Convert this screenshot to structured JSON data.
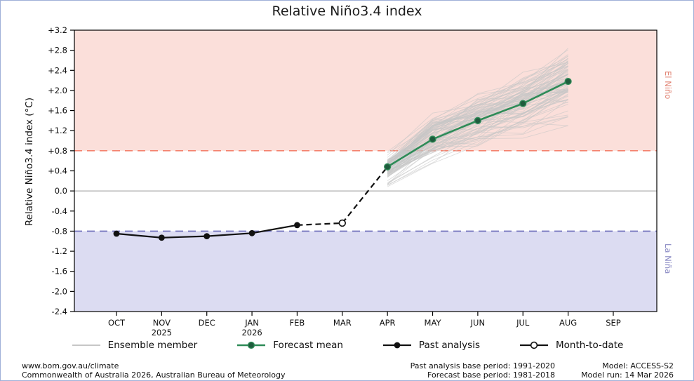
{
  "title": "Relative Niño3.4 index",
  "ylabel": "Relative Niño3.4 index (°C)",
  "right_labels": {
    "el_nino": "El Niño",
    "la_nina": "La Niña"
  },
  "legend": {
    "ensemble": "Ensemble member",
    "forecast": "Forecast mean",
    "past": "Past analysis",
    "mtd": "Month-to-date"
  },
  "footer": {
    "site": "www.bom.gov.au/climate",
    "copyright": "Commonwealth of Australia 2026, Australian Bureau of Meteorology",
    "past_base": "Past analysis base period: 1991-2020",
    "forecast_base": "Forecast base period: 1981-2018",
    "model": "Model: ACCESS-S2",
    "model_run": "Model run: 14 Mar 2026"
  },
  "colors": {
    "forecast_green": "#2e8b57",
    "forecast_marker": "#1f5c3d",
    "past_black": "#111111",
    "ensemble_gray": "#c6c6c6",
    "el_nino_region": "#fbdfda",
    "la_nina_region": "#dcdcf2",
    "el_nino_line": "#f4826e",
    "la_nina_line": "#6b6bb8",
    "el_nino_text": "#e08272",
    "la_nina_text": "#8787c2",
    "zero_line": "#999999"
  },
  "chart_data": {
    "type": "line",
    "title": "Relative Niño3.4 index",
    "xlabel": "",
    "ylabel": "Relative Niño3.4 index (°C)",
    "ylim": [
      -2.4,
      3.2
    ],
    "grid": false,
    "legend_position": "bottom",
    "categories": [
      "OCT",
      "NOV",
      "DEC",
      "JAN",
      "FEB",
      "MAR",
      "APR",
      "MAY",
      "JUN",
      "JUL",
      "AUG",
      "SEP"
    ],
    "year_labels": [
      {
        "month_index": 1,
        "label": "2025"
      },
      {
        "month_index": 3,
        "label": "2026"
      }
    ],
    "yticks": [
      {
        "v": 3.2,
        "label": "+3.2"
      },
      {
        "v": 2.8,
        "label": "+2.8"
      },
      {
        "v": 2.4,
        "label": "+2.4"
      },
      {
        "v": 2.0,
        "label": "+2.0"
      },
      {
        "v": 1.6,
        "label": "+1.6"
      },
      {
        "v": 1.2,
        "label": "+1.2"
      },
      {
        "v": 0.8,
        "label": "+0.8"
      },
      {
        "v": 0.4,
        "label": "+0.4"
      },
      {
        "v": 0.0,
        "label": "0.0"
      },
      {
        "v": -0.4,
        "label": "-0.4"
      },
      {
        "v": -0.8,
        "label": "-0.8"
      },
      {
        "v": -1.2,
        "label": "-1.2"
      },
      {
        "v": -1.6,
        "label": "-1.6"
      },
      {
        "v": -2.0,
        "label": "-2.0"
      },
      {
        "v": -2.4,
        "label": "-2.4"
      }
    ],
    "thresholds": {
      "el_nino": 0.8,
      "zero": 0.0,
      "la_nina": -0.8
    },
    "regions": [
      {
        "name": "El Niño",
        "from": 0.8,
        "to": 3.2
      },
      {
        "name": "La Niña",
        "from": -2.4,
        "to": -0.8
      }
    ],
    "series": [
      {
        "name": "Past analysis",
        "style": "solid",
        "marker": "filled",
        "months": [
          "OCT",
          "NOV",
          "DEC",
          "JAN",
          "FEB"
        ],
        "values": [
          -0.85,
          -0.93,
          -0.9,
          -0.84,
          -0.68
        ]
      },
      {
        "name": "Month-to-date",
        "style": "dashed",
        "marker": "open",
        "months": [
          "FEB",
          "MAR"
        ],
        "values": [
          -0.68,
          -0.64
        ]
      },
      {
        "name": "Forecast connector",
        "style": "dashed",
        "marker": "none",
        "months": [
          "MAR",
          "APR"
        ],
        "values": [
          -0.64,
          0.48
        ]
      },
      {
        "name": "Forecast mean",
        "style": "solid",
        "marker": "filled",
        "months": [
          "APR",
          "MAY",
          "JUN",
          "JUL",
          "AUG"
        ],
        "values": [
          0.48,
          1.03,
          1.4,
          1.74,
          2.18
        ]
      }
    ],
    "ensemble": {
      "name": "Ensemble member",
      "months": [
        "APR",
        "MAY",
        "JUN",
        "JUL",
        "AUG"
      ],
      "count": 90,
      "min": [
        0.08,
        0.55,
        0.82,
        1.05,
        1.3
      ],
      "max": [
        0.78,
        1.55,
        2.0,
        2.42,
        2.95
      ]
    }
  }
}
